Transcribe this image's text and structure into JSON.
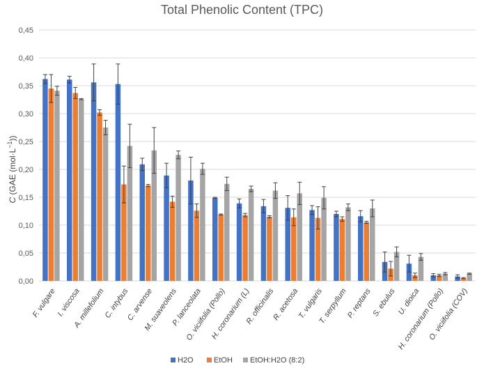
{
  "chart_data": {
    "type": "bar",
    "title": "Total Phenolic Content (TPC)",
    "ylabel_prefix": "C",
    "ylabel_rest": " (GAE (mol·L",
    "ylabel_sup": "−1",
    "ylabel_end": "))",
    "xlabel": "",
    "ylim": [
      0,
      0.45
    ],
    "y_ticks": [
      "0,00",
      "0,05",
      "0,10",
      "0,15",
      "0,20",
      "0,25",
      "0,30",
      "0,35",
      "0,40",
      "0,45"
    ],
    "grid": true,
    "legend_position": "bottom",
    "categories": [
      "F. vulgare",
      "I. viscosa",
      "A. millefolium",
      "C. intybus",
      "C. arvense",
      "M. suaveolens",
      "P. lanceolata",
      "O. viciifolia (Pollo)",
      "H. coronarium (L)",
      "R. officinalis",
      "R. acetosa",
      "T. vulgaris",
      "T. serpyllum",
      "P. reptans",
      "S. ebulus",
      "U. dioica",
      "H. coronarium (Pollo)",
      "O. viciifolia (COV)"
    ],
    "series": [
      {
        "name": "H2O",
        "color": "#4472c4",
        "values": [
          0.362,
          0.361,
          0.356,
          0.353,
          0.209,
          0.189,
          0.18,
          0.149,
          0.139,
          0.134,
          0.131,
          0.127,
          0.12,
          0.116,
          0.034,
          0.031,
          0.01,
          0.008
        ],
        "errors": [
          0.008,
          0.006,
          0.033,
          0.036,
          0.011,
          0.022,
          0.042,
          0.001,
          0.008,
          0.012,
          0.022,
          0.008,
          0.005,
          0.01,
          0.018,
          0.015,
          0.003,
          0.003
        ]
      },
      {
        "name": "EtOH",
        "color": "#ed7d31",
        "values": [
          0.345,
          0.337,
          0.302,
          0.173,
          0.171,
          0.142,
          0.126,
          0.119,
          0.118,
          0.115,
          0.114,
          0.113,
          0.111,
          0.105,
          0.022,
          0.01,
          0.01,
          0.005
        ],
        "errors": [
          0.025,
          0.01,
          0.005,
          0.033,
          0.002,
          0.01,
          0.012,
          0.001,
          0.003,
          0.002,
          0.015,
          0.02,
          0.004,
          0.002,
          0.013,
          0.004,
          0.002,
          0.001
        ]
      },
      {
        "name": "EtOH:H2O (8:2)",
        "color": "#a5a5a5",
        "values": [
          0.341,
          0.326,
          0.275,
          0.242,
          0.234,
          0.226,
          0.201,
          0.174,
          0.165,
          0.162,
          0.157,
          0.149,
          0.132,
          0.13,
          0.052,
          0.043,
          0.013,
          0.013
        ],
        "errors": [
          0.008,
          0.001,
          0.013,
          0.039,
          0.041,
          0.007,
          0.01,
          0.012,
          0.005,
          0.014,
          0.02,
          0.02,
          0.006,
          0.015,
          0.009,
          0.006,
          0.002,
          0.001
        ]
      }
    ]
  }
}
